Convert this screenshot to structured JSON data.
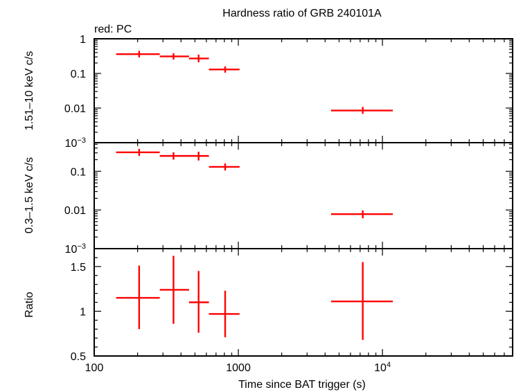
{
  "chart_data": {
    "type": "scatter",
    "title": "Hardness ratio of GRB 240101A",
    "xlabel": "Time since BAT trigger (s)",
    "xscale": "log",
    "xlim": [
      100,
      80000
    ],
    "x_ticks": [
      {
        "value": 100,
        "label": "100"
      },
      {
        "value": 1000,
        "label": "1000"
      },
      {
        "value": 10000,
        "label": "10",
        "exp": "4"
      }
    ],
    "annotation": "red: PC",
    "colors": {
      "series": "#ff0000",
      "axes": "#000000",
      "background": "#ffffff"
    },
    "panels": [
      {
        "ylabel": "0.3–1.5 keV c/s 1.51–10 keV c/s",
        "ylabel_parts": [
          "1.51–10 keV c/s",
          "0.3–1.5 keV c/s"
        ],
        "ylabel_display": "1.51–10 keV c/s",
        "yscale": "log",
        "ylim": [
          0.001,
          1
        ],
        "y_ticks": [
          {
            "value": 1,
            "label": "1"
          },
          {
            "value": 0.1,
            "label": "0.1"
          },
          {
            "value": 0.01,
            "label": "0.01"
          },
          {
            "value": 0.001,
            "label": "10",
            "exp": "−3"
          }
        ],
        "points": [
          {
            "x": 205,
            "xlo": 142,
            "xhi": 285,
            "y": 0.36,
            "ylo": 0.29,
            "yhi": 0.45
          },
          {
            "x": 355,
            "xlo": 285,
            "xhi": 455,
            "y": 0.31,
            "ylo": 0.25,
            "yhi": 0.38
          },
          {
            "x": 530,
            "xlo": 455,
            "xhi": 625,
            "y": 0.27,
            "ylo": 0.21,
            "yhi": 0.35
          },
          {
            "x": 810,
            "xlo": 625,
            "xhi": 1020,
            "y": 0.13,
            "ylo": 0.105,
            "yhi": 0.16
          },
          {
            "x": 7300,
            "xlo": 4400,
            "xhi": 11800,
            "y": 0.0085,
            "ylo": 0.0068,
            "yhi": 0.0108
          }
        ]
      },
      {
        "ylabel": "0.3–1.5 keV c/s",
        "yscale": "log",
        "ylim": [
          0.001,
          0.55
        ],
        "y_ticks": [
          {
            "value": 0.1,
            "label": "0.1"
          },
          {
            "value": 0.01,
            "label": "0.01"
          },
          {
            "value": 0.001,
            "label": "10",
            "exp": "−3"
          }
        ],
        "points": [
          {
            "x": 205,
            "xlo": 142,
            "xhi": 285,
            "y": 0.31,
            "ylo": 0.25,
            "yhi": 0.38
          },
          {
            "x": 355,
            "xlo": 285,
            "xhi": 455,
            "y": 0.25,
            "ylo": 0.2,
            "yhi": 0.31
          },
          {
            "x": 530,
            "xlo": 455,
            "xhi": 625,
            "y": 0.25,
            "ylo": 0.19,
            "yhi": 0.32
          },
          {
            "x": 810,
            "xlo": 625,
            "xhi": 1020,
            "y": 0.13,
            "ylo": 0.105,
            "yhi": 0.16
          },
          {
            "x": 7300,
            "xlo": 4400,
            "xhi": 11800,
            "y": 0.0078,
            "ylo": 0.0061,
            "yhi": 0.0098
          }
        ]
      },
      {
        "ylabel": "Ratio",
        "yscale": "linear",
        "ylim": [
          0.5,
          1.7
        ],
        "y_ticks": [
          {
            "value": 1.5,
            "label": "1.5"
          },
          {
            "value": 1,
            "label": "1"
          },
          {
            "value": 0.5,
            "label": "0.5"
          }
        ],
        "points": [
          {
            "x": 205,
            "xlo": 142,
            "xhi": 285,
            "y": 1.15,
            "ylo": 0.8,
            "yhi": 1.51
          },
          {
            "x": 355,
            "xlo": 285,
            "xhi": 455,
            "y": 1.24,
            "ylo": 0.86,
            "yhi": 1.62
          },
          {
            "x": 530,
            "xlo": 455,
            "xhi": 625,
            "y": 1.1,
            "ylo": 0.76,
            "yhi": 1.45
          },
          {
            "x": 810,
            "xlo": 625,
            "xhi": 1020,
            "y": 0.97,
            "ylo": 0.71,
            "yhi": 1.23
          },
          {
            "x": 7300,
            "xlo": 4400,
            "xhi": 11800,
            "y": 1.11,
            "ylo": 0.68,
            "yhi": 1.55
          }
        ]
      }
    ]
  }
}
